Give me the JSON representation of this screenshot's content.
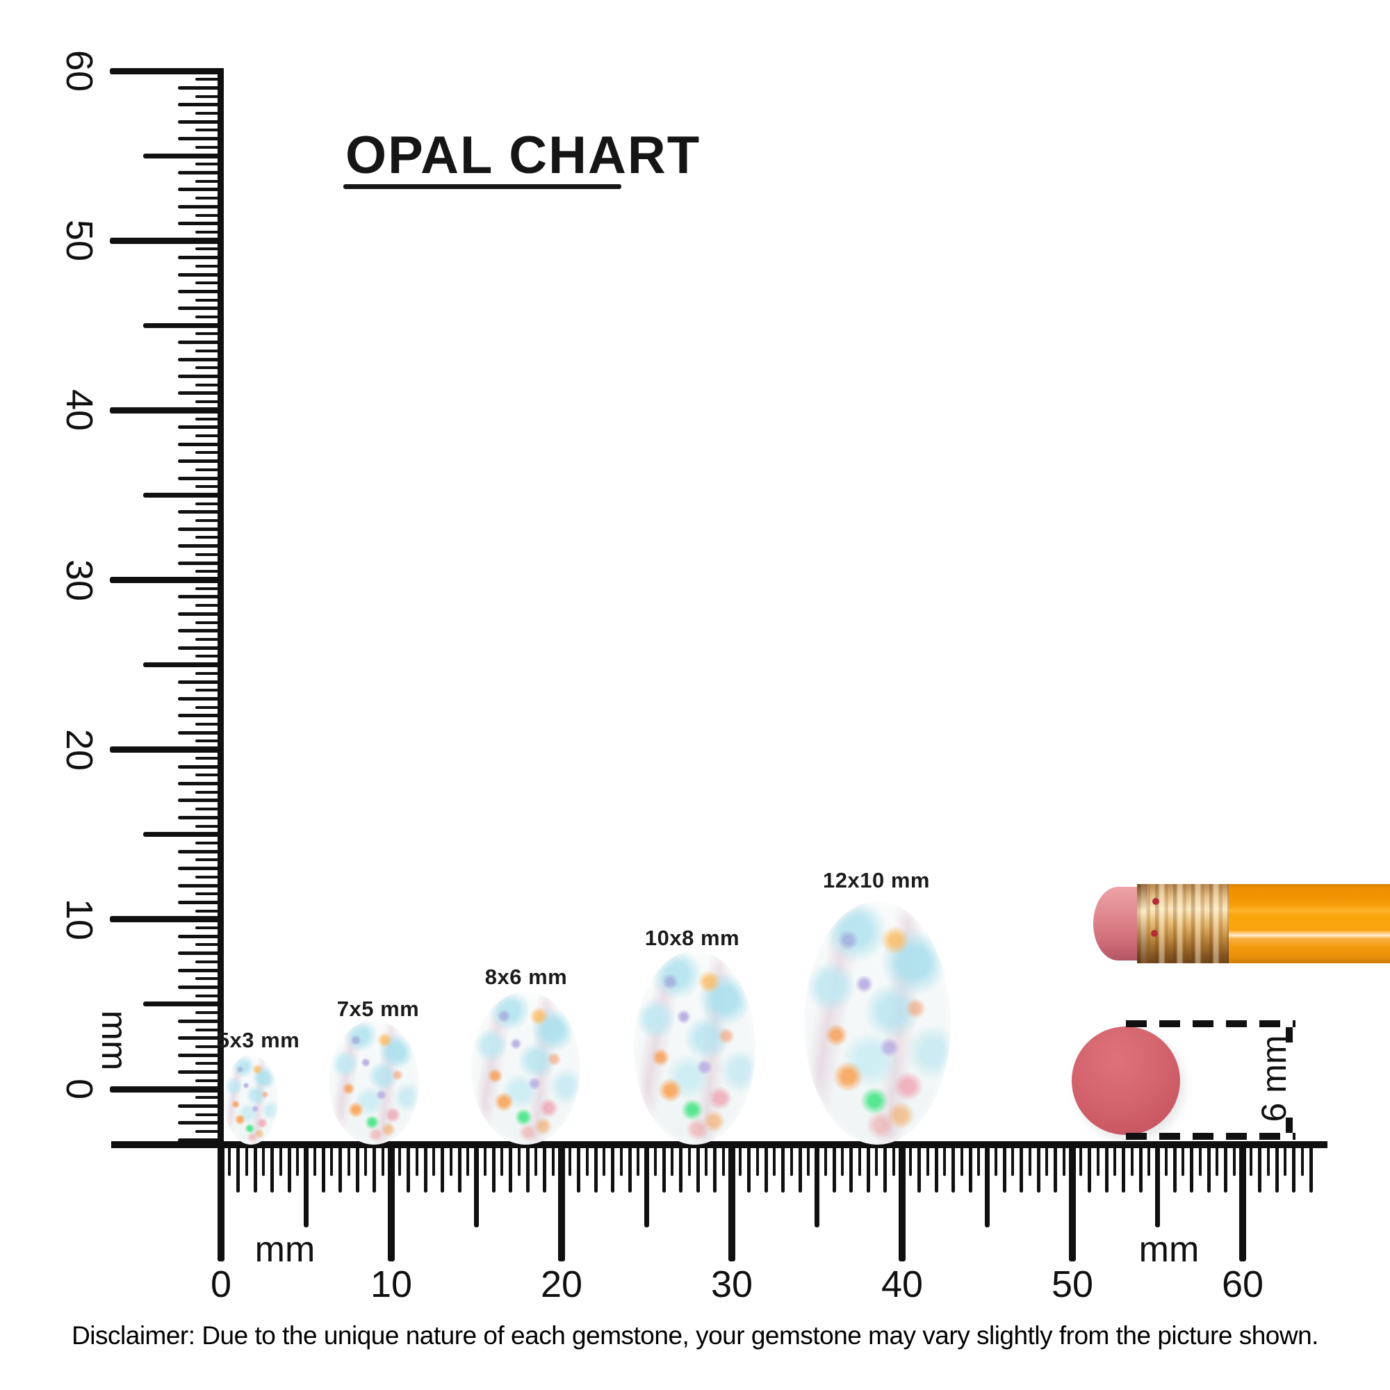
{
  "title": {
    "text": "OPAL CHART"
  },
  "vertical_ruler": {
    "unit": "mm",
    "labels": [
      "60",
      "50",
      "40",
      "30",
      "20",
      "10",
      "0"
    ]
  },
  "horizontal_ruler": {
    "unit_left": "mm",
    "unit_right": "mm",
    "labels": [
      "0",
      "10",
      "20",
      "30",
      "40",
      "50",
      "60"
    ]
  },
  "opals": [
    {
      "label": "5x3 mm",
      "width_mm": 3,
      "height_mm": 5
    },
    {
      "label": "7x5 mm",
      "width_mm": 5,
      "height_mm": 7
    },
    {
      "label": "8x6 mm",
      "width_mm": 6,
      "height_mm": 8
    },
    {
      "label": "10x8 mm",
      "width_mm": 8,
      "height_mm": 10
    },
    {
      "label": "12x10 mm",
      "width_mm": 10,
      "height_mm": 12
    }
  ],
  "eraser": {
    "dimension_label": "6 mm"
  },
  "disclaimer": {
    "text": "Disclaimer: Due to the unique nature of each gemstone, your gemstone may vary slightly from the picture shown."
  }
}
